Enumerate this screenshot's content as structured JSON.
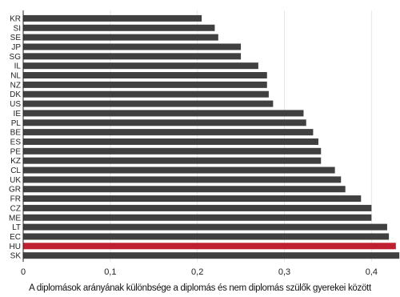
{
  "chart_data": {
    "type": "bar",
    "orientation": "horizontal",
    "categories": [
      "KR",
      "SI",
      "SE",
      "JP",
      "SG",
      "IL",
      "NL",
      "NZ",
      "DK",
      "US",
      "IE",
      "PL",
      "BE",
      "ES",
      "PE",
      "KZ",
      "CL",
      "UK",
      "GR",
      "FR",
      "CZ",
      "ME",
      "LT",
      "EC",
      "HU",
      "SK"
    ],
    "values": [
      0.205,
      0.22,
      0.224,
      0.25,
      0.25,
      0.27,
      0.28,
      0.28,
      0.282,
      0.287,
      0.322,
      0.325,
      0.333,
      0.339,
      0.342,
      0.342,
      0.358,
      0.365,
      0.37,
      0.388,
      0.4,
      0.4,
      0.418,
      0.42,
      0.428,
      0.432
    ],
    "highlight": "HU",
    "colors": {
      "bar": "#404040",
      "highlight": "#c01f2f",
      "grid": "#e6e6e6"
    },
    "xlim": [
      0,
      0.43
    ],
    "xticks": [
      "0",
      "0,1",
      "0,2",
      "0,3",
      "0,4"
    ],
    "xtick_values": [
      0,
      0.1,
      0.2,
      0.3,
      0.4
    ],
    "xlabel": "A diplomások arányának különbsége a diplomás és nem diplomás szülők gyerekei között",
    "grid": true
  }
}
